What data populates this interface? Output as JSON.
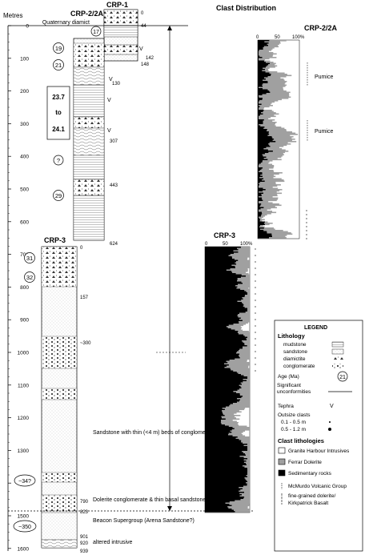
{
  "depth_axis": {
    "label": "Metres",
    "ticks": [
      0,
      100,
      200,
      300,
      400,
      500,
      600,
      700,
      800,
      900,
      1000,
      1100,
      1200,
      1300,
      1400,
      1500,
      1600
    ]
  },
  "cores": {
    "crp1": {
      "title": "CRP-1",
      "top_label": "0",
      "depth_labels": [
        "44",
        "142",
        "148"
      ]
    },
    "crp2": {
      "title": "CRP-2/2A",
      "note": "Quaternary diamict",
      "depth_labels": [
        "130",
        "307",
        "443",
        "624"
      ],
      "bottom_label": "0"
    },
    "crp3": {
      "title": "CRP-3",
      "depth_labels": [
        "157",
        "~300",
        "790",
        "823",
        "901",
        "920",
        "939"
      ]
    }
  },
  "ages": {
    "a17": "17",
    "a19": "19",
    "a21": "21",
    "range_top": "23.7",
    "range_mid": "to",
    "range_bottom": "24.1",
    "a_q": "?",
    "a29": "29",
    "a31": "31",
    "a32": "32",
    "a34": "~34?",
    "a350": "~350"
  },
  "annotations": {
    "sandstone": "Sandstone with thin (<4 m) beds of conglomerate",
    "dolerite": "Dolerite conglomerate & thin basal sandstone breccia",
    "beacon": "Beacon Supergroup (Arena Sandstone?)",
    "altered": "altered intrusive"
  },
  "clast_distribution": {
    "title": "Clast Distribution",
    "crp2": {
      "title": "CRP-2/2A",
      "ticks": [
        "0",
        "50",
        "100%"
      ],
      "pumice": [
        "Pumice",
        "Pumice"
      ]
    },
    "crp3": {
      "title": "CRP-3",
      "ticks": [
        "0",
        "50",
        "100%"
      ]
    }
  },
  "legend": {
    "title": "LEGEND",
    "lithology_title": "Lithology",
    "lithology": [
      "mudstone",
      "sandstone",
      "diamictite",
      "conglomerate"
    ],
    "age_label": "Age (Ma)",
    "age_symbol": "21",
    "unconformity": "Significant unconformities",
    "tephra": "Tephra",
    "tephra_symbol": "V",
    "outsize_title": "Outsize clasts",
    "outsize": [
      "0.1 - 0.5 m",
      "0.5 - 1.2 m"
    ],
    "clast_title": "Clast lithologies",
    "clasts": [
      "Granite Harbour Intrusives",
      "Ferrar Dolerite",
      "Sedimentary rocks"
    ],
    "volcanic": "McMurdo Volcanic Group",
    "kirk1": "fine-grained dolerite/",
    "kirk2": "Kirkpatrick Basalt",
    "colors": {
      "granite": "#ffffff",
      "ferrar": "#a0a0a0",
      "sedimentary": "#000000"
    }
  }
}
